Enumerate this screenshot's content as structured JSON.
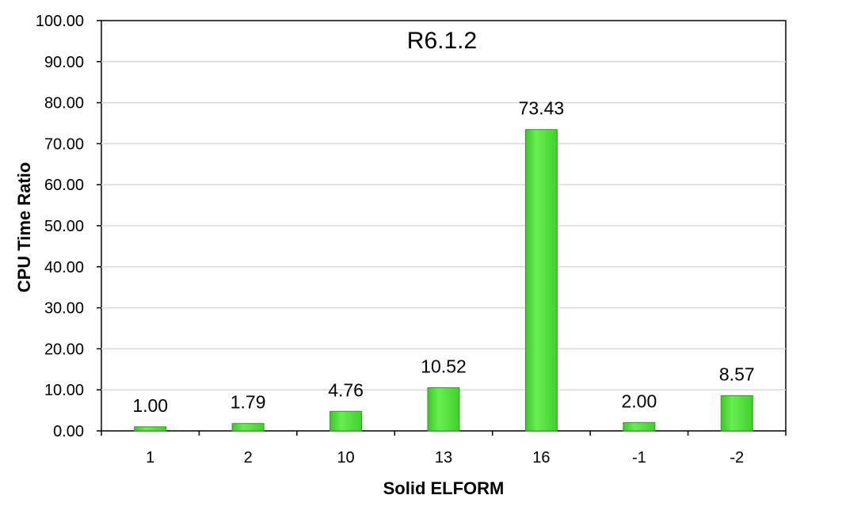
{
  "chart_data": {
    "type": "bar",
    "title": "R6.1.2",
    "xlabel": "Solid ELFORM",
    "ylabel": "CPU Time Ratio",
    "categories": [
      "1",
      "2",
      "10",
      "13",
      "16",
      "-1",
      "-2"
    ],
    "values": [
      1.0,
      1.79,
      4.76,
      10.52,
      73.43,
      2.0,
      8.57
    ],
    "value_labels": [
      "1.00",
      "1.79",
      "4.76",
      "10.52",
      "73.43",
      "2.00",
      "8.57"
    ],
    "ylim": [
      0,
      100
    ],
    "yticks": [
      "0.00",
      "10.00",
      "20.00",
      "30.00",
      "40.00",
      "50.00",
      "60.00",
      "70.00",
      "80.00",
      "90.00",
      "100.00"
    ],
    "grid": true,
    "legend": "none",
    "colors": {
      "bar": "#4fe23a",
      "bar_edge": "#2f9a22",
      "grid": "#d9d9d9",
      "axis": "#000000"
    }
  }
}
